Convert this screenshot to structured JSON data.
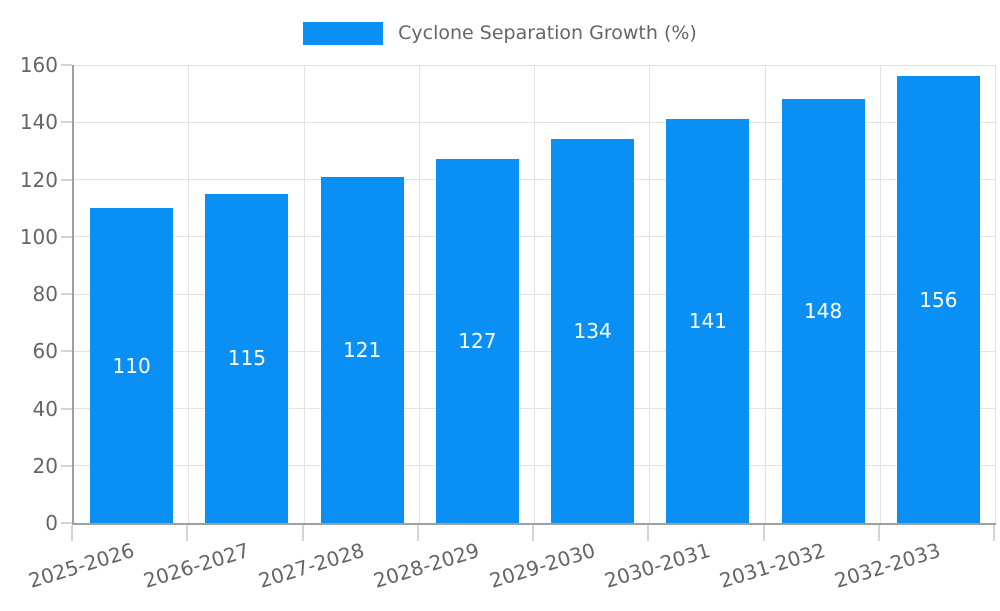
{
  "chart_data": {
    "type": "bar",
    "title": "",
    "xlabel": "",
    "ylabel": "",
    "categories": [
      "2025-2026",
      "2026-2027",
      "2027-2028",
      "2028-2029",
      "2029-2030",
      "2030-2031",
      "2031-2032",
      "2032-2033"
    ],
    "values": [
      110,
      115,
      121,
      127,
      134,
      141,
      148,
      156
    ],
    "ylim": [
      0,
      160
    ],
    "ytick_step": 20,
    "yticks": [
      "0",
      "20",
      "40",
      "60",
      "80",
      "100",
      "120",
      "140",
      "160"
    ],
    "legend": [
      "Cyclone Separation Growth (%)"
    ],
    "legend_position": "top",
    "grid": true,
    "bar_color": "#0a90f5",
    "value_label_color": "#ffffff",
    "tick_label_color": "#666666",
    "gridline_color": "#e3e3e3",
    "axis_color": "#a0a0a0"
  }
}
